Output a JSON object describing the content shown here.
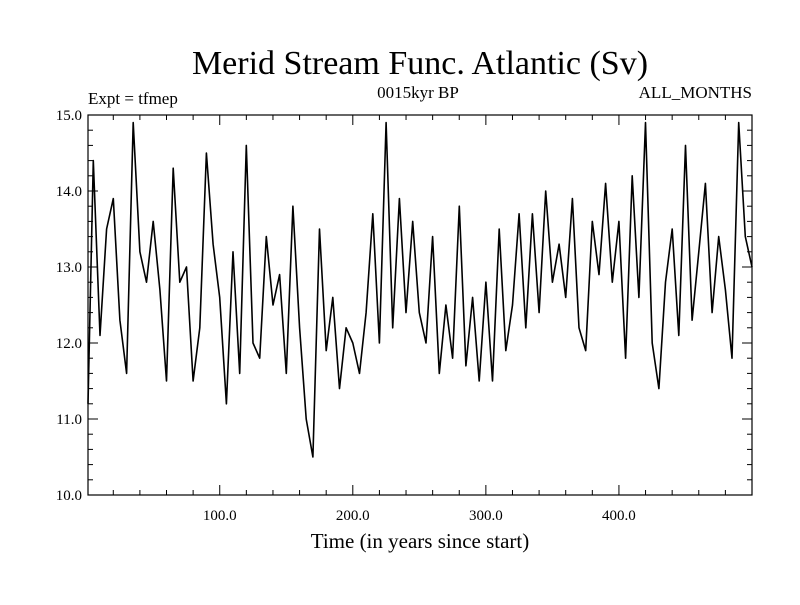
{
  "chart_data": {
    "type": "line",
    "title": "Merid Stream Func. Atlantic (Sv)",
    "experiment_label": "Expt = tfmep",
    "subtitle": "0015kyr BP",
    "months_label": "ALL_MONTHS",
    "xlabel": "Time (in years since start)",
    "ylabel": "",
    "xlim": [
      1,
      500
    ],
    "ylim": [
      10.0,
      15.0
    ],
    "x_ticks": [
      {
        "value": 100,
        "label": "100.0"
      },
      {
        "value": 200,
        "label": "200.0"
      },
      {
        "value": 300,
        "label": "300.0"
      },
      {
        "value": 400,
        "label": "400.0"
      }
    ],
    "y_ticks": [
      {
        "value": 10.0,
        "label": "10.0"
      },
      {
        "value": 11.0,
        "label": "11.0"
      },
      {
        "value": 12.0,
        "label": "12.0"
      },
      {
        "value": 13.0,
        "label": "13.0"
      },
      {
        "value": 14.0,
        "label": "14.0"
      },
      {
        "value": 15.0,
        "label": "15.0"
      }
    ],
    "grid": false,
    "legend": "none",
    "line_color": "#000000",
    "x": [
      1,
      5,
      10,
      15,
      20,
      25,
      30,
      35,
      40,
      45,
      50,
      55,
      60,
      65,
      70,
      75,
      80,
      85,
      90,
      95,
      100,
      105,
      110,
      115,
      120,
      125,
      130,
      135,
      140,
      145,
      150,
      155,
      160,
      165,
      170,
      175,
      180,
      185,
      190,
      195,
      200,
      205,
      210,
      215,
      220,
      225,
      230,
      235,
      240,
      245,
      250,
      255,
      260,
      265,
      270,
      275,
      280,
      285,
      290,
      295,
      300,
      305,
      310,
      315,
      320,
      325,
      330,
      335,
      340,
      345,
      350,
      355,
      360,
      365,
      370,
      375,
      380,
      385,
      390,
      395,
      400,
      405,
      410,
      415,
      420,
      425,
      430,
      435,
      440,
      445,
      450,
      455,
      460,
      465,
      470,
      475,
      480,
      485,
      490,
      495,
      500
    ],
    "values": [
      11.2,
      14.4,
      12.1,
      13.5,
      13.9,
      12.3,
      11.6,
      14.9,
      13.2,
      12.8,
      13.6,
      12.7,
      11.5,
      14.3,
      12.8,
      13.0,
      11.5,
      12.2,
      14.5,
      13.3,
      12.6,
      11.2,
      13.2,
      11.6,
      14.6,
      12.0,
      11.8,
      13.4,
      12.5,
      12.9,
      11.6,
      13.8,
      12.2,
      11.0,
      10.5,
      13.5,
      11.9,
      12.6,
      11.4,
      12.2,
      12.0,
      11.6,
      12.4,
      13.7,
      12.0,
      14.9,
      12.2,
      13.9,
      12.4,
      13.6,
      12.4,
      12.0,
      13.4,
      11.6,
      12.5,
      11.8,
      13.8,
      11.7,
      12.6,
      11.5,
      12.8,
      11.5,
      13.5,
      11.9,
      12.5,
      13.7,
      12.2,
      13.7,
      12.4,
      14.0,
      12.8,
      13.3,
      12.6,
      13.9,
      12.2,
      11.9,
      13.6,
      12.9,
      14.1,
      12.8,
      13.6,
      11.8,
      14.2,
      12.6,
      14.9,
      12.0,
      11.4,
      12.8,
      13.5,
      12.1,
      14.6,
      12.3,
      13.2,
      14.1,
      12.4,
      13.4,
      12.7,
      11.8,
      14.9,
      13.4,
      13.0
    ]
  }
}
